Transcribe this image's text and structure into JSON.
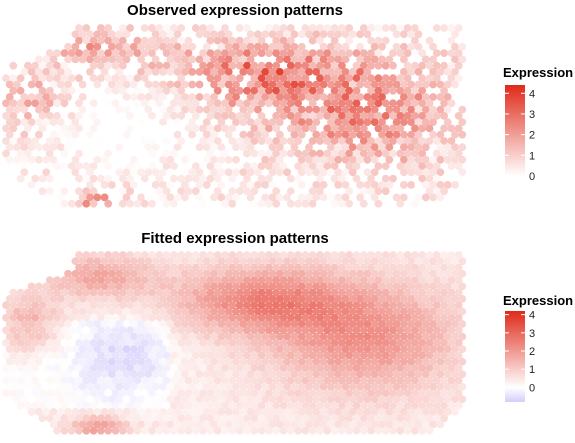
{
  "panels": [
    {
      "title": "Observed expression patterns",
      "legend": {
        "title": "Expression",
        "ticks": [
          4,
          3,
          2,
          1,
          0
        ],
        "min": 0,
        "max": 4.4,
        "colors": [
          "#ffffff",
          "#e02a1a"
        ]
      }
    },
    {
      "title": "Fitted expression patterns",
      "legend": {
        "title": "Expression",
        "ticks": [
          4,
          3,
          2,
          1,
          0
        ],
        "min": -0.8,
        "max": 4.2,
        "colors": [
          "#d4cdfa",
          "#ffffff",
          "#e02a1a"
        ]
      }
    }
  ],
  "chart_data": [
    {
      "type": "heatmap",
      "title": "Observed expression patterns",
      "legend_title": "Expression",
      "color_range": [
        0,
        4.4
      ],
      "legend_ticks": [
        0,
        1,
        2,
        3,
        4
      ],
      "description_values": "spatial spots colored by observed expression; higher expression concentrated in the upper-middle band and right half, sparse zeros on the left",
      "legend_placement": "right"
    },
    {
      "type": "heatmap",
      "title": "Fitted expression patterns",
      "legend_title": "Expression",
      "color_range": [
        -0.8,
        4.2
      ],
      "legend_ticks": [
        0,
        1,
        2,
        3,
        4
      ],
      "description_values": "smoothed fitted expression over same spatial spots; high region upper-middle and right, low values on left with slight negative values",
      "legend_placement": "right"
    }
  ]
}
